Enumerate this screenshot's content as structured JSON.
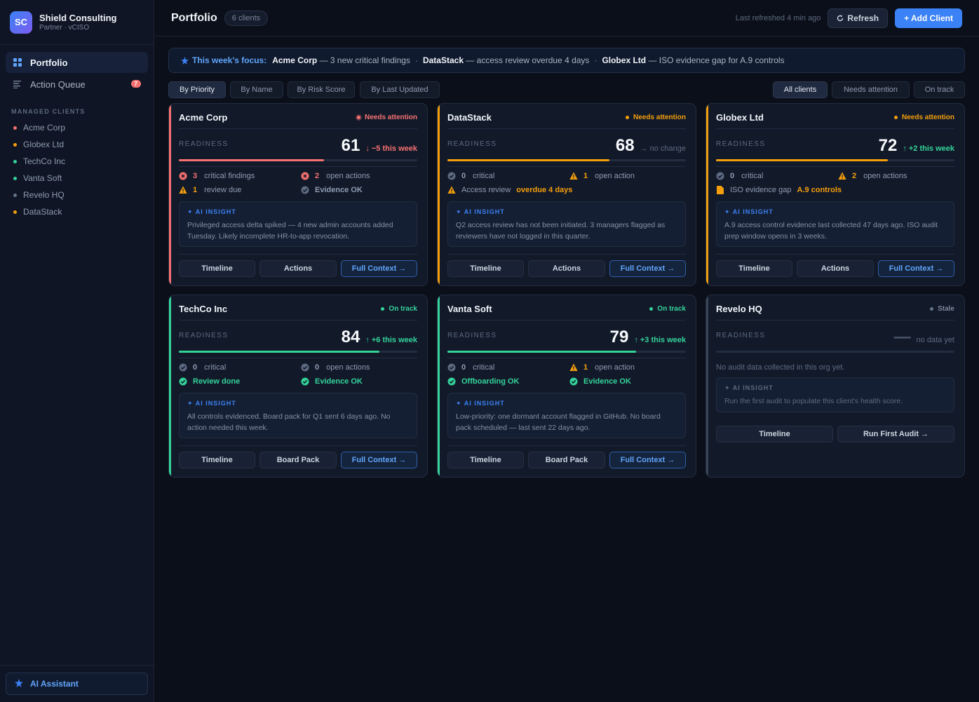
{
  "brand": {
    "initials": "SC",
    "name": "Shield Consulting",
    "role": "Partner · vCISO"
  },
  "nav": [
    {
      "label": "Portfolio",
      "icon": "grid-icon",
      "active": true
    },
    {
      "label": "Action Queue",
      "icon": "list-icon",
      "badge": "7"
    }
  ],
  "sidebar": {
    "section_label": "MANAGED CLIENTS",
    "clients": [
      {
        "label": "Acme Corp",
        "color": "#f87171"
      },
      {
        "label": "Globex Ltd",
        "color": "#f59e0b"
      },
      {
        "label": "TechCo Inc",
        "color": "#34d399"
      },
      {
        "label": "Vanta Soft",
        "color": "#34d399"
      },
      {
        "label": "Revelo HQ",
        "color": "#64748b"
      },
      {
        "label": "DataStack",
        "color": "#f59e0b"
      }
    ],
    "ai_assistant": "AI Assistant"
  },
  "header": {
    "title": "Portfolio",
    "count": "6 clients",
    "refreshed": "Last refreshed 4 min ago",
    "refresh_label": "Refresh",
    "add_label": "+ Add Client"
  },
  "focus": {
    "lead": "This week's focus:",
    "items": [
      {
        "client": "Acme Corp",
        "text": "— 3 new critical findings"
      },
      {
        "client": "DataStack",
        "text": "— access review overdue 4 days"
      },
      {
        "client": "Globex Ltd",
        "text": "— ISO evidence gap for A.9 controls"
      }
    ],
    "separator": "·"
  },
  "sort_options": [
    "By Priority",
    "By Name",
    "By Risk Score",
    "By Last Updated"
  ],
  "filter_options": [
    "All clients",
    "Needs attention",
    "On track"
  ],
  "readiness_label": "READINESS",
  "insight_label": "✦ AI INSIGHT",
  "colors": {
    "red": "#f87171",
    "amber": "#f59e0b",
    "green": "#34d399",
    "gray": "#64748b",
    "accent": "#3b82f6"
  },
  "cards": [
    {
      "name": "Acme Corp",
      "status": "Needs attention",
      "score": "61",
      "delta": "↓ −5 this week",
      "readiness_pct": 61,
      "metrics": [
        {
          "icon": "x-circle-icon",
          "num": "3",
          "label": "critical findings"
        },
        {
          "icon": "x-circle-icon",
          "num": "2",
          "label": "open actions"
        },
        {
          "icon": "warning-icon",
          "num": "1",
          "label": "review due"
        },
        {
          "icon": "check-circle-icon",
          "label": "Evidence OK"
        }
      ],
      "insight": "Privileged access delta spiked — 4 new admin accounts added Tuesday. Likely incomplete HR-to-app revocation.",
      "buttons": [
        "Timeline",
        "Actions",
        "Full Context →"
      ]
    },
    {
      "name": "DataStack",
      "status": "Needs attention",
      "score": "68",
      "delta": "→ no change",
      "readiness_pct": 68,
      "metrics": [
        {
          "icon": "check-circle-icon",
          "num": "0",
          "label": "critical"
        },
        {
          "icon": "warning-icon",
          "num": "1",
          "label": "open action"
        },
        {
          "icon": "warning-icon",
          "label": "Access review",
          "highlight": "overdue 4 days"
        }
      ],
      "insight": "Q2 access review has not been initiated. 3 managers flagged as reviewers have not logged in this quarter.",
      "buttons": [
        "Timeline",
        "Actions",
        "Full Context →"
      ]
    },
    {
      "name": "Globex Ltd",
      "status": "Needs attention",
      "score": "72",
      "delta": "↑ +2 this week",
      "readiness_pct": 72,
      "metrics": [
        {
          "icon": "check-circle-icon",
          "num": "0",
          "label": "critical"
        },
        {
          "icon": "warning-icon",
          "num": "2",
          "label": "open actions"
        },
        {
          "icon": "document-icon",
          "label": "ISO evidence gap",
          "highlight": "A.9 controls"
        }
      ],
      "insight": "A.9 access control evidence last collected 47 days ago. ISO audit prep window opens in 3 weeks.",
      "buttons": [
        "Timeline",
        "Actions",
        "Full Context →"
      ]
    },
    {
      "name": "TechCo Inc",
      "status": "On track",
      "score": "84",
      "delta": "↑ +6 this week",
      "readiness_pct": 84,
      "metrics": [
        {
          "icon": "check-circle-icon",
          "num": "0",
          "label": "critical"
        },
        {
          "icon": "check-circle-icon",
          "num": "0",
          "label": "open actions"
        },
        {
          "icon": "check-circle-icon",
          "label": "Review done"
        },
        {
          "icon": "check-circle-icon",
          "label": "Evidence OK"
        }
      ],
      "insight": "All controls evidenced. Board pack for Q1 sent 6 days ago. No action needed this week.",
      "buttons": [
        "Timeline",
        "Board Pack",
        "Full Context →"
      ]
    },
    {
      "name": "Vanta Soft",
      "status": "On track",
      "score": "79",
      "delta": "↑ +3 this week",
      "readiness_pct": 79,
      "metrics": [
        {
          "icon": "check-circle-icon",
          "num": "0",
          "label": "critical"
        },
        {
          "icon": "warning-icon",
          "num": "1",
          "label": "open action"
        },
        {
          "icon": "check-circle-icon",
          "label": "Offboarding OK"
        },
        {
          "icon": "check-circle-icon",
          "label": "Evidence OK"
        }
      ],
      "insight": "Low-priority: one dormant account flagged in GitHub. No board pack scheduled — last sent 22 days ago.",
      "buttons": [
        "Timeline",
        "Board Pack",
        "Full Context →"
      ]
    },
    {
      "name": "Revelo HQ",
      "status": "Stale",
      "score": "—",
      "delta": "no data yet",
      "readiness_pct": 0,
      "note": "No audit data collected in this org yet.",
      "insight": "Run the first audit to populate this client's health score.",
      "buttons": [
        "Timeline",
        "Run First Audit →"
      ]
    }
  ]
}
